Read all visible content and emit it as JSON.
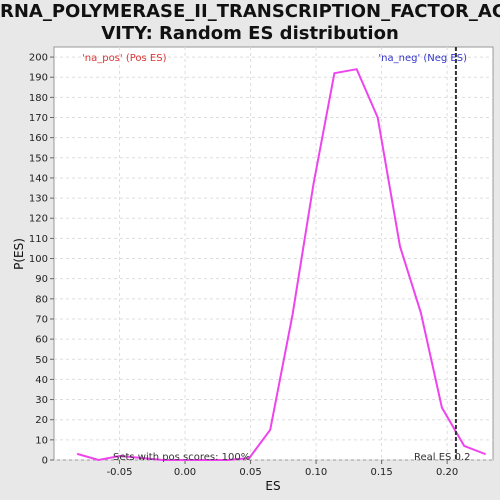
{
  "title_line1": "RNA_POLYMERASE_II_TRANSCRIPTION_FACTOR_ACTI",
  "title_line2": "VITY: Random ES distribution",
  "chart_data": {
    "type": "line",
    "title": "RNA_POLYMERASE_II_TRANSCRIPTION_FACTOR_ACTIVITY: Random ES distribution",
    "xlabel": "ES",
    "ylabel": "P(ES)",
    "xlim": [
      -0.1,
      0.235
    ],
    "ylim": [
      0,
      205
    ],
    "x_ticks": [
      -0.05,
      0.0,
      0.05,
      0.1,
      0.15,
      0.2
    ],
    "x_tick_labels": [
      "-0.05",
      "0.00",
      "0.05",
      "0.10",
      "0.15",
      "0.20"
    ],
    "y_ticks": [
      0,
      10,
      20,
      30,
      40,
      50,
      60,
      70,
      80,
      90,
      100,
      110,
      120,
      130,
      140,
      150,
      160,
      170,
      180,
      190,
      200
    ],
    "grid": true,
    "series": [
      {
        "color": "#ee44ee",
        "x": [
          -0.082,
          -0.066,
          -0.05,
          -0.033,
          -0.017,
          0.0,
          0.016,
          0.033,
          0.049,
          0.065,
          0.082,
          0.098,
          0.114,
          0.131,
          0.147,
          0.164,
          0.18,
          0.196,
          0.213,
          0.229
        ],
        "y": [
          3,
          0,
          2,
          1,
          0,
          0,
          0,
          0,
          1,
          15,
          72,
          137,
          192,
          194,
          170,
          106,
          73,
          26,
          7,
          3
        ]
      }
    ],
    "real_es": 0.2067,
    "real_es_color": "#333333",
    "legend_pos": "'na_pos' (Pos ES)",
    "legend_neg": "'na_neg' (Neg ES)",
    "annotation_pos": "Sets with pos scores: 100%",
    "annotation_real": "Real ES 0.2"
  }
}
